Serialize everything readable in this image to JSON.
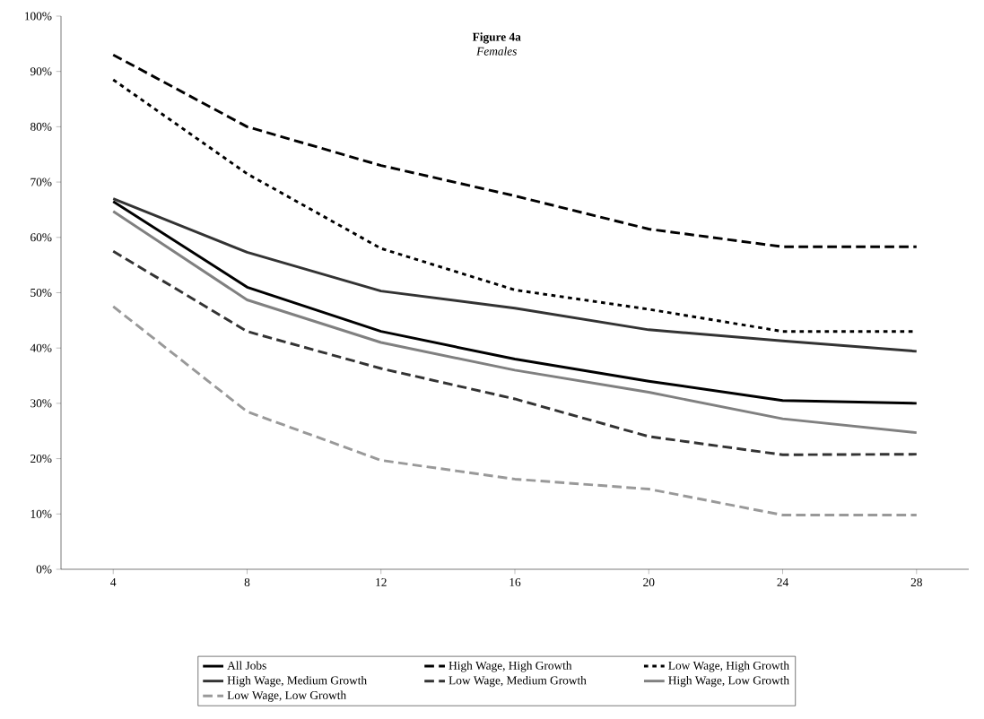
{
  "chart_data": {
    "type": "line",
    "title": "Figure 4a",
    "subtitle": "Females",
    "categories": [
      "4",
      "8",
      "12",
      "16",
      "20",
      "24",
      "28"
    ],
    "series": [
      {
        "name": "All Jobs",
        "color": "#000000",
        "line_style": "solid",
        "values": [
          66.5,
          51,
          43,
          38,
          34,
          30.5,
          30
        ]
      },
      {
        "name": "High Wage, High Growth",
        "color": "#000000",
        "line_style": "dashed",
        "values": [
          93,
          80,
          73,
          67.5,
          61.5,
          58.3,
          58.3
        ]
      },
      {
        "name": "Low Wage, High Growth",
        "color": "#000000",
        "line_style": "dotted",
        "values": [
          88.5,
          71.5,
          58,
          50.5,
          47,
          43,
          43
        ]
      },
      {
        "name": "High Wage, Medium Growth",
        "color": "#333333",
        "line_style": "solid",
        "values": [
          67,
          57.3,
          50.3,
          47.2,
          43.3,
          41.3,
          39.4
        ]
      },
      {
        "name": "Low Wage, Medium Growth",
        "color": "#333333",
        "line_style": "dashed",
        "values": [
          57.5,
          43,
          36.3,
          30.8,
          24,
          20.7,
          20.8
        ]
      },
      {
        "name": "High Wage, Low Growth",
        "color": "#808080",
        "line_style": "solid",
        "values": [
          64.7,
          48.7,
          41,
          36,
          32,
          27.2,
          24.7
        ]
      },
      {
        "name": "Low Wage, Low Growth",
        "color": "#999999",
        "line_style": "dashed",
        "values": [
          47.5,
          28.5,
          19.7,
          16.3,
          14.5,
          9.8,
          9.8
        ]
      }
    ],
    "ylim": [
      0,
      100
    ],
    "yticks": [
      {
        "value": 0,
        "label": "0%"
      },
      {
        "value": 10,
        "label": "10%"
      },
      {
        "value": 20,
        "label": "20%"
      },
      {
        "value": 30,
        "label": "30%"
      },
      {
        "value": 40,
        "label": "40%"
      },
      {
        "value": 50,
        "label": "50%"
      },
      {
        "value": 60,
        "label": "60%"
      },
      {
        "value": 70,
        "label": "70%"
      },
      {
        "value": 80,
        "label": "80%"
      },
      {
        "value": 90,
        "label": "90%"
      },
      {
        "value": 100,
        "label": "100%"
      }
    ],
    "grid": false,
    "legend": "bottom",
    "marker": "none"
  }
}
